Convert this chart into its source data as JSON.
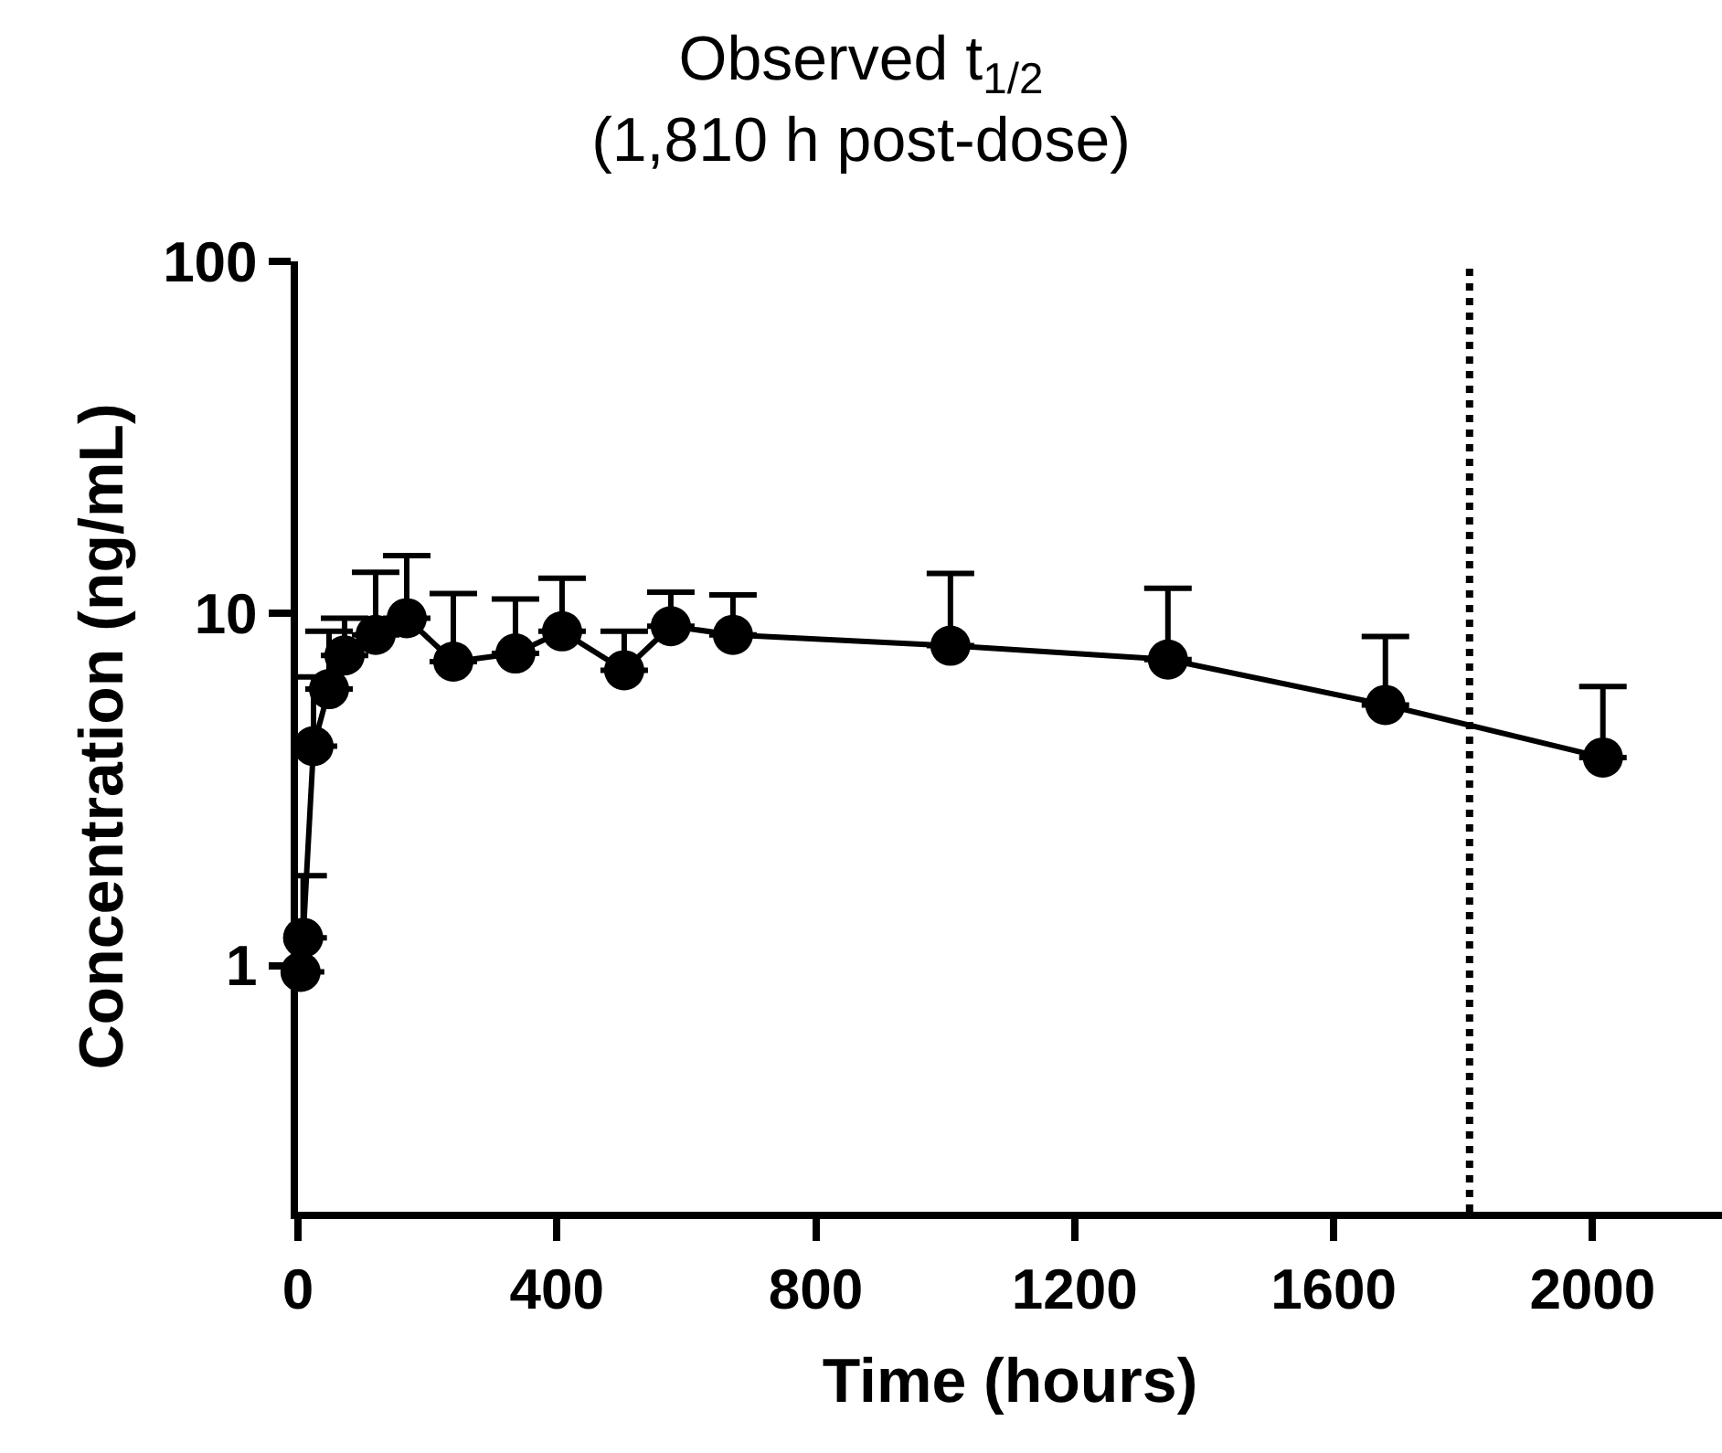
{
  "chart_data": {
    "type": "line",
    "title": "Observed t$_{1/2}$\n(1,810 h post-dose)",
    "xlabel": "Time (hours)",
    "ylabel": "Concentration (ng/mL)",
    "x": [
      4,
      8,
      24,
      48,
      72,
      120,
      168,
      240,
      336,
      408,
      504,
      576,
      672,
      1008,
      1344,
      1680,
      2016
    ],
    "series": [
      {
        "color": "#000000",
        "values": [
          0.96,
          1.2,
          4.2,
          6.1,
          7.6,
          8.7,
          9.7,
          7.3,
          7.7,
          8.9,
          6.9,
          9.2,
          8.7,
          8.1,
          7.4,
          5.5,
          3.9
        ],
        "errors": [
          null,
          [
            1.2,
            1.8
          ],
          [
            4.2,
            6.6
          ],
          [
            6.1,
            8.9
          ],
          [
            7.6,
            9.7
          ],
          [
            8.7,
            13.1
          ],
          [
            9.7,
            14.6
          ],
          [
            7.3,
            11.4
          ],
          [
            7.7,
            11.0
          ],
          [
            8.9,
            12.6
          ],
          [
            6.9,
            8.9
          ],
          [
            9.2,
            11.5
          ],
          [
            8.7,
            11.3
          ],
          [
            8.1,
            13.0
          ],
          [
            7.4,
            11.8
          ],
          [
            5.5,
            8.6
          ],
          [
            3.9,
            6.2
          ]
        ]
      }
    ],
    "xlim": [
      0,
      2200
    ],
    "xticks": [
      0,
      400,
      800,
      1200,
      1600,
      2000
    ],
    "ylim": [
      0.2,
      100
    ],
    "yticks": [
      1,
      10,
      100
    ],
    "log": "y",
    "ref_lines": [
      {
        "axis": "x",
        "value": 1810,
        "color": "#000000",
        "line_style": "dotted"
      }
    ],
    "marker": "circle",
    "line_style": "solid"
  }
}
